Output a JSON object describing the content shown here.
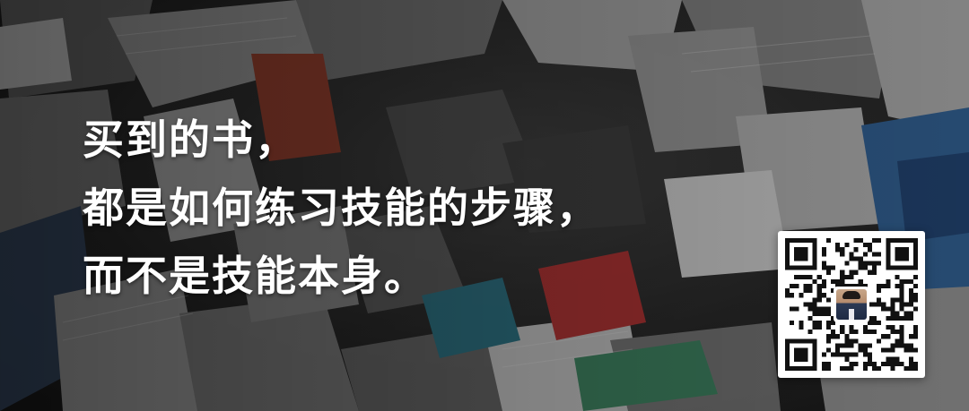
{
  "headline": {
    "line1": "买到的书，",
    "line2": "都是如何练习技能的步骤，",
    "line3": "而不是技能本身。"
  },
  "qr_code": {
    "icon": "qr-code-icon",
    "avatar_icon": "person-photo-icon"
  },
  "colors": {
    "text": "#ffffff",
    "card": "#ffffff",
    "qr": "#111111"
  }
}
